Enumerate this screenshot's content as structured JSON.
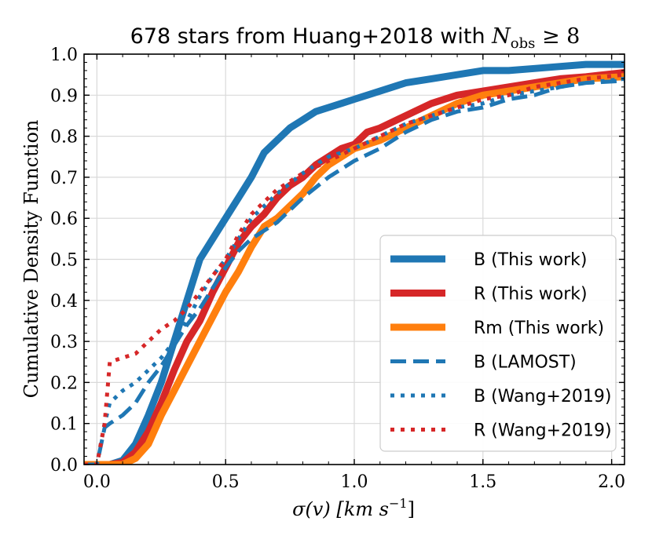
{
  "chart_data": {
    "type": "line",
    "title": "678 stars from Huang+2018 with N_obs ≥ 8",
    "title_parts": {
      "prefix": "678 stars from Huang+2018 with ",
      "var": "N",
      "sub": "obs",
      "suffix": " ≥ 8"
    },
    "xlabel": "σ(v) [km s⁻¹]",
    "xlabel_parts": {
      "sigma": "σ(v) [km s",
      "sup": "−1",
      "close": "]"
    },
    "ylabel": "Cumulative Density Function",
    "xlim": [
      -0.05,
      2.05
    ],
    "ylim": [
      0.0,
      1.0
    ],
    "xticks": [
      0.0,
      0.5,
      1.0,
      1.5,
      2.0
    ],
    "xtick_labels": [
      "0.0",
      "0.5",
      "1.0",
      "1.5",
      "2.0"
    ],
    "yticks": [
      0.0,
      0.1,
      0.2,
      0.3,
      0.4,
      0.5,
      0.6,
      0.7,
      0.8,
      0.9,
      1.0
    ],
    "ytick_labels": [
      "0.0",
      "0.1",
      "0.2",
      "0.3",
      "0.4",
      "0.5",
      "0.6",
      "0.7",
      "0.8",
      "0.9",
      "1.0"
    ],
    "grid": true,
    "legend_position": "bottom-right",
    "series": [
      {
        "name": "B (This work)",
        "color": "#1f77b4",
        "style": "solid",
        "x": [
          -0.05,
          0.05,
          0.1,
          0.15,
          0.2,
          0.25,
          0.3,
          0.35,
          0.4,
          0.45,
          0.5,
          0.55,
          0.6,
          0.65,
          0.7,
          0.75,
          0.8,
          0.85,
          0.9,
          0.95,
          1.0,
          1.1,
          1.2,
          1.3,
          1.4,
          1.5,
          1.6,
          1.7,
          1.8,
          1.9,
          2.05
        ],
        "y": [
          0.0,
          0.0,
          0.01,
          0.05,
          0.12,
          0.2,
          0.3,
          0.4,
          0.5,
          0.55,
          0.6,
          0.65,
          0.7,
          0.76,
          0.79,
          0.82,
          0.84,
          0.86,
          0.87,
          0.88,
          0.89,
          0.91,
          0.93,
          0.94,
          0.95,
          0.96,
          0.96,
          0.965,
          0.97,
          0.975,
          0.975
        ]
      },
      {
        "name": "R (This work)",
        "color": "#d62728",
        "style": "solid",
        "x": [
          -0.05,
          0.05,
          0.1,
          0.15,
          0.2,
          0.25,
          0.3,
          0.35,
          0.4,
          0.45,
          0.5,
          0.55,
          0.6,
          0.65,
          0.7,
          0.75,
          0.8,
          0.85,
          0.9,
          0.95,
          1.0,
          1.05,
          1.1,
          1.2,
          1.3,
          1.4,
          1.5,
          1.6,
          1.7,
          1.8,
          1.9,
          2.05
        ],
        "y": [
          0.0,
          0.0,
          0.005,
          0.03,
          0.08,
          0.15,
          0.23,
          0.3,
          0.35,
          0.42,
          0.48,
          0.54,
          0.58,
          0.61,
          0.65,
          0.68,
          0.7,
          0.73,
          0.75,
          0.77,
          0.78,
          0.81,
          0.82,
          0.85,
          0.88,
          0.9,
          0.91,
          0.92,
          0.93,
          0.94,
          0.945,
          0.955
        ]
      },
      {
        "name": "Rm (This work)",
        "color": "#ff7f0e",
        "style": "solid",
        "x": [
          -0.05,
          0.1,
          0.15,
          0.2,
          0.25,
          0.3,
          0.35,
          0.4,
          0.45,
          0.5,
          0.55,
          0.6,
          0.65,
          0.7,
          0.75,
          0.8,
          0.85,
          0.9,
          0.95,
          1.0,
          1.1,
          1.2,
          1.3,
          1.4,
          1.5,
          1.6,
          1.7,
          1.8,
          1.9,
          2.05
        ],
        "y": [
          0.0,
          0.0,
          0.015,
          0.05,
          0.12,
          0.18,
          0.24,
          0.3,
          0.36,
          0.42,
          0.47,
          0.53,
          0.58,
          0.6,
          0.63,
          0.66,
          0.7,
          0.73,
          0.75,
          0.77,
          0.79,
          0.82,
          0.85,
          0.88,
          0.9,
          0.91,
          0.92,
          0.93,
          0.94,
          0.945
        ]
      },
      {
        "name": "B (LAMOST)",
        "color": "#1f77b4",
        "style": "dashed",
        "x": [
          -0.05,
          0.0,
          0.03,
          0.05,
          0.1,
          0.15,
          0.2,
          0.25,
          0.3,
          0.35,
          0.4,
          0.45,
          0.5,
          0.55,
          0.6,
          0.65,
          0.7,
          0.8,
          0.9,
          1.0,
          1.1,
          1.2,
          1.3,
          1.4,
          1.5,
          1.6,
          1.7,
          1.8,
          1.9,
          2.05
        ],
        "y": [
          0.0,
          0.0,
          0.09,
          0.1,
          0.12,
          0.15,
          0.2,
          0.24,
          0.29,
          0.34,
          0.38,
          0.43,
          0.48,
          0.52,
          0.55,
          0.57,
          0.59,
          0.65,
          0.7,
          0.74,
          0.77,
          0.81,
          0.84,
          0.86,
          0.87,
          0.89,
          0.9,
          0.92,
          0.93,
          0.935
        ]
      },
      {
        "name": "B (Wang+2019)",
        "color": "#1f77b4",
        "style": "dotted",
        "x": [
          -0.05,
          0.0,
          0.03,
          0.05,
          0.1,
          0.15,
          0.2,
          0.25,
          0.3,
          0.35,
          0.4,
          0.45,
          0.5,
          0.55,
          0.6,
          0.65,
          0.7,
          0.8,
          0.9,
          1.0,
          1.1,
          1.2,
          1.3,
          1.4,
          1.5,
          1.6,
          1.7,
          1.8,
          1.9,
          2.05
        ],
        "y": [
          0.0,
          0.0,
          0.1,
          0.15,
          0.18,
          0.2,
          0.23,
          0.26,
          0.3,
          0.35,
          0.41,
          0.46,
          0.5,
          0.55,
          0.6,
          0.63,
          0.66,
          0.71,
          0.75,
          0.77,
          0.8,
          0.83,
          0.85,
          0.87,
          0.88,
          0.9,
          0.91,
          0.92,
          0.93,
          0.94
        ]
      },
      {
        "name": "R (Wang+2019)",
        "color": "#d62728",
        "style": "dotted",
        "x": [
          -0.05,
          0.0,
          0.03,
          0.05,
          0.1,
          0.15,
          0.2,
          0.25,
          0.3,
          0.35,
          0.4,
          0.45,
          0.5,
          0.55,
          0.6,
          0.65,
          0.7,
          0.8,
          0.9,
          1.0,
          1.1,
          1.2,
          1.3,
          1.4,
          1.5,
          1.6,
          1.7,
          1.8,
          1.9,
          2.05
        ],
        "y": [
          0.0,
          0.0,
          0.1,
          0.25,
          0.26,
          0.27,
          0.3,
          0.33,
          0.35,
          0.38,
          0.42,
          0.46,
          0.5,
          0.56,
          0.61,
          0.64,
          0.67,
          0.71,
          0.74,
          0.77,
          0.8,
          0.83,
          0.85,
          0.87,
          0.89,
          0.9,
          0.92,
          0.93,
          0.94,
          0.95
        ]
      }
    ]
  }
}
